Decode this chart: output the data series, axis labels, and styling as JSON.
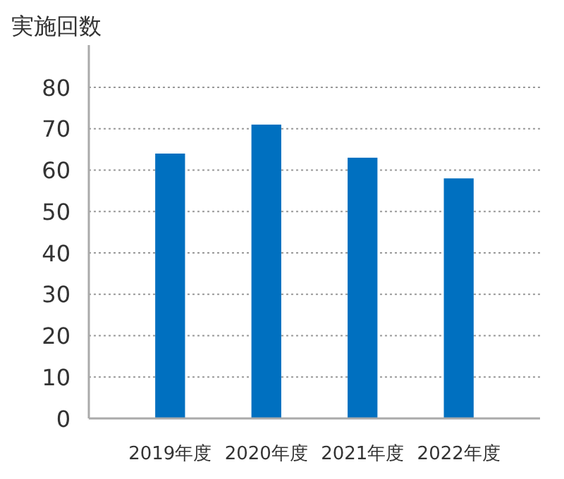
{
  "chart_data": {
    "type": "bar",
    "ylabel": "実施回数",
    "categories": [
      "2019年度",
      "2020年度",
      "2021年度",
      "2022年度"
    ],
    "values": [
      64,
      71,
      63,
      58
    ],
    "color": "#0070c0",
    "ylim": [
      0,
      80
    ],
    "yticks": [
      0,
      10,
      20,
      30,
      40,
      50,
      60,
      70,
      80
    ],
    "grid": "y"
  }
}
